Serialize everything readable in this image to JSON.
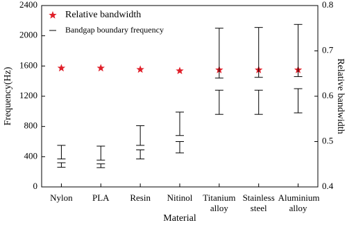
{
  "chart_data": {
    "type": "range",
    "x_label": "Material",
    "y_label": "Frequency(Hz)",
    "y2_label": "Relative bandwidth",
    "categories": [
      "Nylon",
      "PLA",
      "Resin",
      "Nitinol",
      "Titanium alloy",
      "Stainless steel",
      "Aluminium alloy"
    ],
    "series": [
      {
        "name": "Relative bandwidth",
        "color": "#e0202a",
        "axis": "y2",
        "values": [
          0.662,
          0.662,
          0.659,
          0.656,
          0.658,
          0.658,
          0.658
        ]
      },
      {
        "name": "Bandgap boundary frequency",
        "color": "#000000",
        "values": [
          [
            [
              260,
              320
            ],
            [
              370,
              550
            ]
          ],
          [
            [
              255,
              305
            ],
            [
              355,
              540
            ]
          ],
          [
            [
              370,
              490
            ],
            [
              550,
              810
            ]
          ],
          [
            [
              450,
              600
            ],
            [
              680,
              990
            ]
          ],
          [
            [
              960,
              1280
            ],
            [
              1440,
              2100
            ]
          ],
          [
            [
              960,
              1280
            ],
            [
              1450,
              2110
            ]
          ],
          [
            [
              980,
              1300
            ],
            [
              1460,
              2150
            ]
          ]
        ]
      }
    ],
    "ylim": [
      0,
      2400
    ],
    "yticks": [
      0,
      400,
      800,
      1200,
      1600,
      2000,
      2400
    ],
    "y2lim": [
      0.4,
      0.8
    ],
    "y2ticks": [
      0.4,
      0.5,
      0.6,
      0.7,
      0.8
    ],
    "legend": "upper left"
  }
}
